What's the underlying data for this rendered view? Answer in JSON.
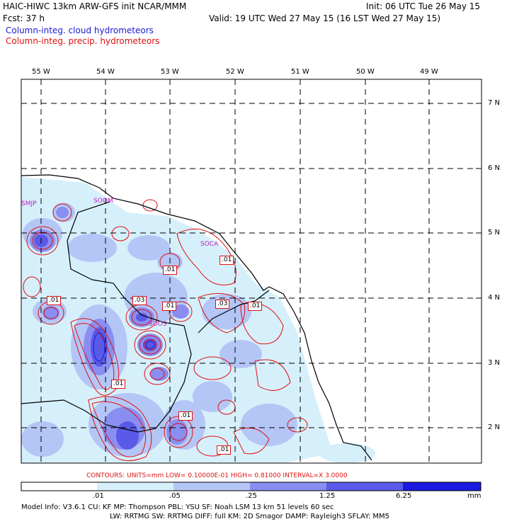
{
  "header": {
    "title_left": "HAIC-HIWC 13km ARW-GFS init   NCAR/MMM",
    "init": "Init: 06 UTC Tue 26 May 15",
    "fcst": "Fcst:   37 h",
    "valid": "Valid: 19 UTC Wed 27 May 15 (16 LST Wed 27 May 15)",
    "legend_cloud": "Column-integ. cloud hydrometeors",
    "legend_precip": "Column-integ. precip. hydrometeors"
  },
  "colors": {
    "cloud_line": "#1a1ad0",
    "precip_line": "#e01010",
    "station": "#c020c0",
    "fill_levels": [
      "#ffffff",
      "#d6f0fb",
      "#b4c6f6",
      "#8a8ef0",
      "#5a5ae8",
      "#1a1ae0"
    ]
  },
  "map": {
    "lon_labels": [
      "55 W",
      "54 W",
      "53 W",
      "52 W",
      "51 W",
      "50 W",
      "49 W"
    ],
    "lat_labels": [
      "7 N",
      "6 N",
      "5 N",
      "4 N",
      "3 N",
      "2 N"
    ],
    "stations": [
      "SMJP",
      "SOCA",
      "SOOS",
      "SOOM"
    ],
    "contour_labels": [
      ".01",
      ".03",
      ".01",
      ".03",
      ".01",
      ".01",
      ".01",
      ".01",
      ".01",
      ".01"
    ]
  },
  "contours_line": "CONTOURS:  UNITS=mm  LOW= 0.10000E-01  HIGH= 0.81000     INTERVAL=X  3.0000",
  "colorbar": {
    "ticks": [
      ".01",
      ".05",
      ".25",
      "1.25",
      "6.25"
    ],
    "units": "mm"
  },
  "footer": {
    "line1": "Model Info: V3.6.1    CU: KF      MP: Thompson    PBL: YSU      SF: Noah LSM     13 km    51 levels   60 sec",
    "line2": "LW: RRTMG    SW: RRTMG   DIFF: full    KM: 2D Smagor DAMP: Rayleigh3   SFLAY: MM5"
  }
}
